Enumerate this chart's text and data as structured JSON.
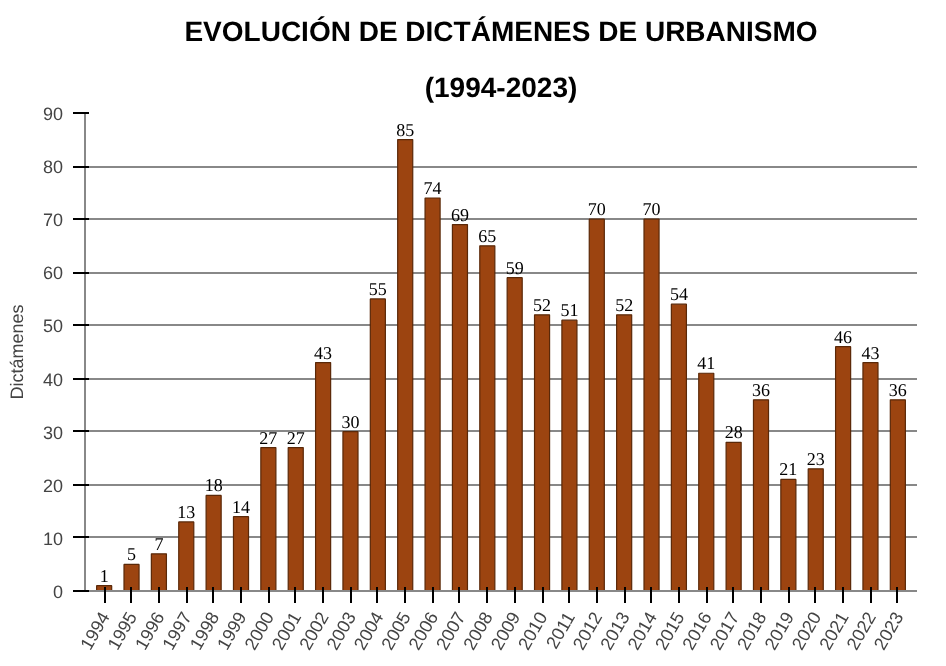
{
  "chart_data": {
    "type": "bar",
    "title": "EVOLUCIÓN DE DICTÁMENES DE URBANISMO",
    "subtitle": "(1994-2023)",
    "ylabel": "Dictámenes",
    "categories": [
      "1994",
      "1995",
      "1996",
      "1997",
      "1998",
      "1999",
      "2000",
      "2001",
      "2002",
      "2003",
      "2004",
      "2005",
      "2006",
      "2007",
      "2008",
      "2009",
      "2010",
      "2011",
      "2012",
      "2013",
      "2014",
      "2015",
      "2016",
      "2017",
      "2018",
      "2019",
      "2020",
      "2021",
      "2022",
      "2023"
    ],
    "values": [
      1,
      5,
      7,
      13,
      18,
      14,
      27,
      27,
      43,
      30,
      55,
      85,
      74,
      69,
      65,
      59,
      52,
      51,
      70,
      52,
      70,
      54,
      41,
      28,
      36,
      21,
      23,
      46,
      43,
      36
    ],
    "color": "#9c4410",
    "ylim": [
      0,
      90
    ],
    "yticks": [
      0,
      10,
      20,
      30,
      40,
      50,
      60,
      70,
      80,
      90
    ],
    "grid": "y",
    "data_labels": true
  }
}
